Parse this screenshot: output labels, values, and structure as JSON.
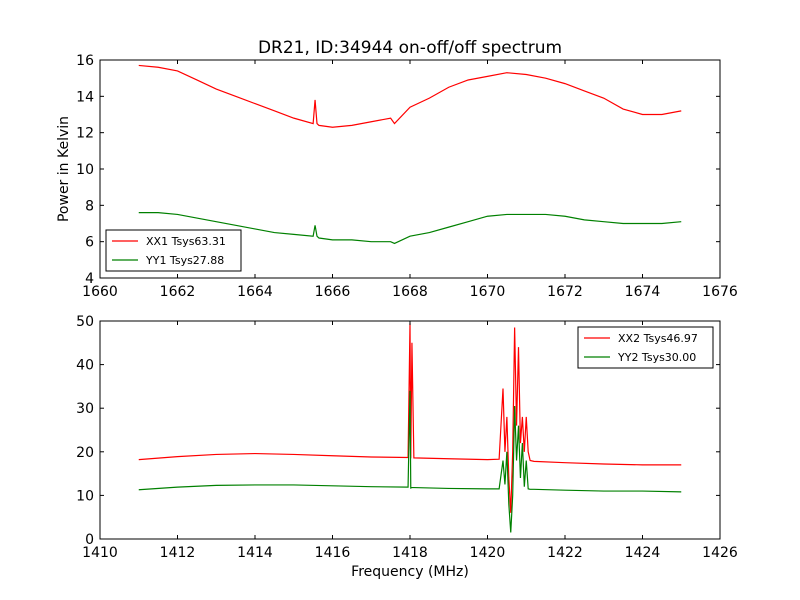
{
  "figure": {
    "title": "DR21, ID:34944 on-off/off spectrum",
    "ylabel": "Power in Kelvin",
    "xlabel": "Frequency (MHz)"
  },
  "chart_data": [
    {
      "type": "line",
      "title": "DR21, ID:34944 on-off/off spectrum",
      "ylabel": "Power in Kelvin",
      "xlabel": "",
      "xlim": [
        1660,
        1676
      ],
      "ylim": [
        4,
        16
      ],
      "xticks": [
        1660,
        1662,
        1664,
        1666,
        1668,
        1670,
        1672,
        1674,
        1676
      ],
      "yticks": [
        4,
        6,
        8,
        10,
        12,
        14,
        16
      ],
      "grid": false,
      "legend": "lower-left",
      "series": [
        {
          "name": "XX1 Tsys63.31",
          "color": "#ff0000",
          "x": [
            1661.0,
            1661.5,
            1662.0,
            1662.5,
            1663.0,
            1663.5,
            1664.0,
            1664.5,
            1665.0,
            1665.5,
            1665.55,
            1665.6,
            1665.65,
            1666.0,
            1666.5,
            1667.0,
            1667.5,
            1667.6,
            1668.0,
            1668.5,
            1669.0,
            1669.5,
            1670.0,
            1670.5,
            1671.0,
            1671.5,
            1672.0,
            1672.5,
            1673.0,
            1673.5,
            1674.0,
            1674.5,
            1675.0
          ],
          "y": [
            15.7,
            15.6,
            15.4,
            14.9,
            14.4,
            14.0,
            13.6,
            13.2,
            12.8,
            12.5,
            13.8,
            12.5,
            12.4,
            12.3,
            12.4,
            12.6,
            12.8,
            12.5,
            13.4,
            13.9,
            14.5,
            14.9,
            15.1,
            15.3,
            15.2,
            15.0,
            14.7,
            14.3,
            13.9,
            13.3,
            13.0,
            13.0,
            13.2
          ]
        },
        {
          "name": "YY1 Tsys27.88",
          "color": "#008000",
          "x": [
            1661.0,
            1661.5,
            1662.0,
            1662.5,
            1663.0,
            1663.5,
            1664.0,
            1664.5,
            1665.0,
            1665.5,
            1665.55,
            1665.6,
            1665.65,
            1666.0,
            1666.5,
            1667.0,
            1667.5,
            1667.6,
            1668.0,
            1668.5,
            1669.0,
            1669.5,
            1670.0,
            1670.5,
            1671.0,
            1671.5,
            1672.0,
            1672.5,
            1673.0,
            1673.5,
            1674.0,
            1674.5,
            1675.0
          ],
          "y": [
            7.6,
            7.6,
            7.5,
            7.3,
            7.1,
            6.9,
            6.7,
            6.5,
            6.4,
            6.3,
            6.9,
            6.3,
            6.2,
            6.1,
            6.1,
            6.0,
            6.0,
            5.9,
            6.3,
            6.5,
            6.8,
            7.1,
            7.4,
            7.5,
            7.5,
            7.5,
            7.4,
            7.2,
            7.1,
            7.0,
            7.0,
            7.0,
            7.1
          ]
        }
      ]
    },
    {
      "type": "line",
      "title": "",
      "ylabel": "",
      "xlabel": "Frequency (MHz)",
      "xlim": [
        1410,
        1426
      ],
      "ylim": [
        0,
        50
      ],
      "xticks": [
        1410,
        1412,
        1414,
        1416,
        1418,
        1420,
        1422,
        1424,
        1426
      ],
      "yticks": [
        0,
        10,
        20,
        30,
        40,
        50
      ],
      "grid": false,
      "legend": "upper-right",
      "series": [
        {
          "name": "XX2 Tsys46.97",
          "color": "#ff0000",
          "x": [
            1411.0,
            1412.0,
            1413.0,
            1414.0,
            1415.0,
            1416.0,
            1417.0,
            1417.95,
            1418.0,
            1418.02,
            1418.05,
            1418.1,
            1419.0,
            1420.0,
            1420.3,
            1420.4,
            1420.45,
            1420.5,
            1420.55,
            1420.6,
            1420.65,
            1420.7,
            1420.75,
            1420.8,
            1420.85,
            1420.9,
            1420.95,
            1421.0,
            1421.05,
            1421.1,
            1421.2,
            1422.0,
            1423.0,
            1424.0,
            1425.0
          ],
          "y": [
            18.2,
            18.9,
            19.4,
            19.6,
            19.4,
            19.1,
            18.8,
            18.7,
            49.5,
            18.5,
            45.0,
            18.6,
            18.4,
            18.2,
            18.3,
            34.5,
            20.0,
            28.0,
            14.0,
            6.0,
            20.0,
            48.5,
            26.0,
            44.0,
            22.0,
            28.0,
            20.0,
            28.0,
            20.0,
            18.0,
            17.8,
            17.5,
            17.2,
            17.0,
            17.0
          ]
        },
        {
          "name": "YY2 Tsys30.00",
          "color": "#008000",
          "x": [
            1411.0,
            1412.0,
            1413.0,
            1414.0,
            1415.0,
            1416.0,
            1417.0,
            1417.95,
            1418.0,
            1418.02,
            1418.05,
            1418.1,
            1419.0,
            1420.0,
            1420.3,
            1420.4,
            1420.45,
            1420.5,
            1420.55,
            1420.6,
            1420.65,
            1420.7,
            1420.75,
            1420.8,
            1420.85,
            1420.9,
            1420.95,
            1421.0,
            1421.05,
            1421.1,
            1421.2,
            1422.0,
            1423.0,
            1424.0,
            1425.0
          ],
          "y": [
            11.3,
            11.9,
            12.3,
            12.4,
            12.4,
            12.2,
            12.0,
            11.9,
            34.0,
            11.7,
            11.8,
            11.8,
            11.6,
            11.5,
            11.5,
            18.0,
            12.5,
            20.0,
            8.0,
            1.5,
            10.0,
            30.5,
            18.0,
            26.0,
            14.0,
            22.0,
            12.0,
            18.0,
            11.5,
            11.4,
            11.4,
            11.2,
            11.0,
            11.0,
            10.8
          ]
        }
      ]
    }
  ]
}
